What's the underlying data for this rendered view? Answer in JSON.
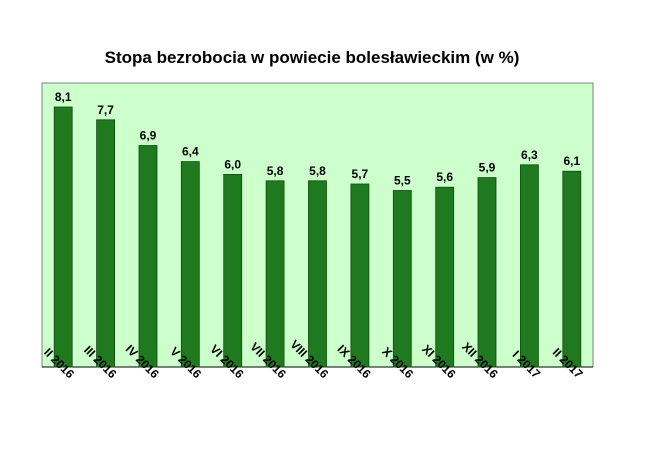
{
  "chart_data": {
    "type": "bar",
    "title": "Stopa bezrobocia w powiecie bolesławieckim (w %)",
    "categories": [
      "II 2016",
      "III 2016",
      "IV 2016",
      "V 2016",
      "VI 2016",
      "VII 2016",
      "VIII 2016",
      "IX 2016",
      "X 2016",
      "XI 2016",
      "XII 2016",
      "I 2017",
      "II 2017"
    ],
    "values": [
      8.1,
      7.7,
      6.9,
      6.4,
      6.0,
      5.8,
      5.8,
      5.7,
      5.5,
      5.6,
      5.9,
      6.3,
      6.1
    ],
    "value_labels": [
      "8,1",
      "7,7",
      "6,9",
      "6,4",
      "6,0",
      "5,8",
      "5,8",
      "5,7",
      "5,5",
      "5,6",
      "5,9",
      "6,3",
      "6,1"
    ],
    "ylim": [
      0,
      8.1
    ],
    "grid": false,
    "legend": "none",
    "colors": {
      "bar_fill": "#1f7a1f",
      "bar_stroke": "#0f4a0f",
      "plot_background": "#ccffcc",
      "plot_border": "#808080"
    }
  }
}
